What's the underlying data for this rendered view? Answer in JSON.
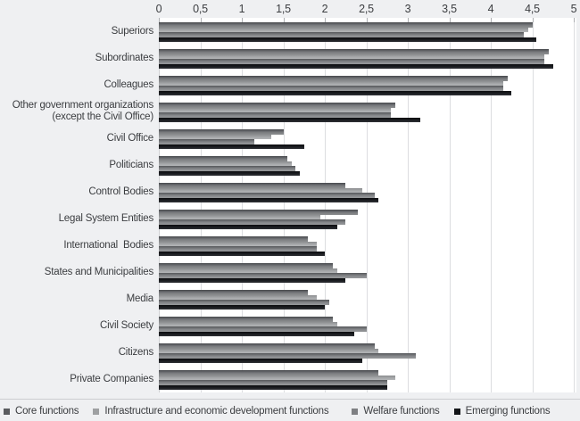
{
  "chart_data": {
    "type": "bar",
    "orientation": "horizontal",
    "title": "",
    "categories": [
      "Superiors",
      "Subordinates",
      "Colleagues",
      "Other government organizations\n(except the Civil Office)",
      "Civil Office",
      "Politicians",
      "Control Bodies",
      "Legal System Entities",
      "International  Bodies",
      "States and Municipalities",
      "Media",
      "Civil Society",
      "Citizens",
      "Private Companies"
    ],
    "series": [
      {
        "name": "Core functions",
        "color": "#5a5c5f",
        "values": [
          4.5,
          4.7,
          4.2,
          2.85,
          1.5,
          1.55,
          2.25,
          2.4,
          1.8,
          2.1,
          1.8,
          2.1,
          2.6,
          2.65
        ]
      },
      {
        "name": "Infrastructure and economic development functions",
        "color": "#9ea0a2",
        "values": [
          4.45,
          4.65,
          4.15,
          2.8,
          1.35,
          1.6,
          2.45,
          1.95,
          1.9,
          2.15,
          1.9,
          2.15,
          2.65,
          2.85
        ]
      },
      {
        "name": "Welfare functions",
        "color": "#7e8083",
        "values": [
          4.4,
          4.65,
          4.15,
          2.8,
          1.15,
          1.65,
          2.6,
          2.25,
          1.9,
          2.5,
          2.05,
          2.5,
          3.1,
          2.75
        ]
      },
      {
        "name": "Emerging functions",
        "color": "#141619",
        "values": [
          4.55,
          4.75,
          4.25,
          3.15,
          1.75,
          1.7,
          2.65,
          2.15,
          2.0,
          2.25,
          2.0,
          2.35,
          2.45,
          2.75
        ]
      }
    ],
    "value_axis": {
      "position": "top",
      "min": 0,
      "max": 5,
      "step": 0.5,
      "tick_labels": [
        "0",
        "0,5",
        "1",
        "1,5",
        "2",
        "2,5",
        "3",
        "3,5",
        "4",
        "4,5",
        "5"
      ]
    },
    "grid": true,
    "legend_position": "bottom"
  }
}
